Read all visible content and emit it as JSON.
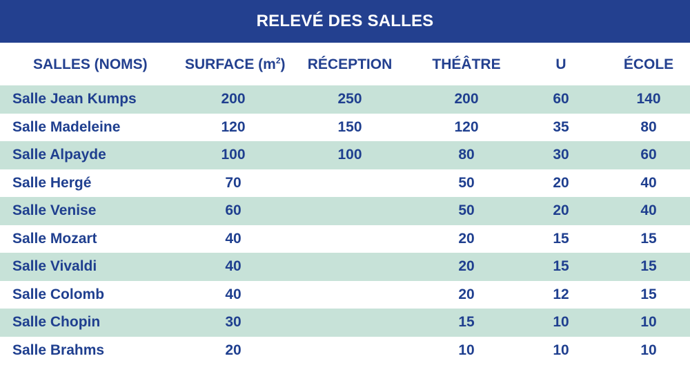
{
  "title": "RELEVÉ DES SALLES",
  "headers": {
    "name": "SALLES (NOMS)",
    "surface": "SURFACE (m",
    "surface_sup": "2",
    "surface_suffix": ")",
    "reception": "RÉCEPTION",
    "theatre": "THÉÂTRE",
    "u": "U",
    "ecole": "ÉCOLE"
  },
  "rows": [
    {
      "name": "Salle Jean Kumps",
      "surface": "200",
      "reception": "250",
      "theatre": "200",
      "u": "60",
      "ecole": "140"
    },
    {
      "name": "Salle Madeleine",
      "surface": "120",
      "reception": "150",
      "theatre": "120",
      "u": "35",
      "ecole": "80"
    },
    {
      "name": "Salle Alpayde",
      "surface": "100",
      "reception": "100",
      "theatre": "80",
      "u": "30",
      "ecole": "60"
    },
    {
      "name": "Salle Hergé",
      "surface": "70",
      "reception": "",
      "theatre": "50",
      "u": "20",
      "ecole": "40"
    },
    {
      "name": "Salle Venise",
      "surface": "60",
      "reception": "",
      "theatre": "50",
      "u": "20",
      "ecole": "40"
    },
    {
      "name": "Salle Mozart",
      "surface": "40",
      "reception": "",
      "theatre": "20",
      "u": "15",
      "ecole": "15"
    },
    {
      "name": "Salle Vivaldi",
      "surface": "40",
      "reception": "",
      "theatre": "20",
      "u": "15",
      "ecole": "15"
    },
    {
      "name": "Salle Colomb",
      "surface": "40",
      "reception": "",
      "theatre": "20",
      "u": "12",
      "ecole": "15"
    },
    {
      "name": "Salle Chopin",
      "surface": "30",
      "reception": "",
      "theatre": "15",
      "u": "10",
      "ecole": "10"
    },
    {
      "name": "Salle Brahms",
      "surface": "20",
      "reception": "",
      "theatre": "10",
      "u": "10",
      "ecole": "10"
    }
  ],
  "colors": {
    "banner": "#23408f",
    "text": "#1f3f8f",
    "stripe": "#c7e2d8",
    "background": "#ffffff"
  }
}
